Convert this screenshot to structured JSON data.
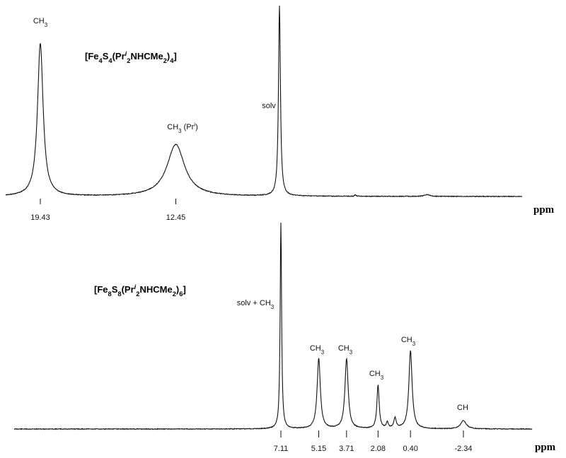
{
  "chart_data": [
    {
      "type": "line",
      "title_parts": [
        {
          "t": "[Fe"
        },
        {
          "t": "4",
          "sub": true
        },
        {
          "t": "S"
        },
        {
          "t": "4",
          "sub": true
        },
        {
          "t": "(Pr"
        },
        {
          "t": "i",
          "sup": true,
          "italic": true
        },
        {
          "t": "2",
          "sub": true
        },
        {
          "t": "NHCMe"
        },
        {
          "t": "2",
          "sub": true
        },
        {
          "t": ")"
        },
        {
          "t": "4",
          "sub": true
        },
        {
          "t": "]"
        }
      ],
      "xlabel": "ppm",
      "x_tick_labels": [
        "19.43",
        "12.45"
      ],
      "x_tick_values": [
        19.43,
        12.45
      ],
      "peaks": [
        {
          "shift": 19.43,
          "height": 1.0,
          "width": 0.35,
          "label_parts": [
            {
              "t": "CH"
            },
            {
              "t": "3",
              "sub": true
            }
          ]
        },
        {
          "shift": 12.45,
          "height": 0.34,
          "width": 1.1,
          "label_parts": [
            {
              "t": "CH"
            },
            {
              "t": "3",
              "sub": true
            },
            {
              "t": " (Pr"
            },
            {
              "t": "i",
              "sup": true
            },
            {
              "t": ")"
            }
          ]
        },
        {
          "shift": 7.11,
          "height": 1.25,
          "width": 0.12,
          "label_parts": [
            {
              "t": "solv"
            }
          ]
        },
        {
          "shift": -0.5,
          "height": 0.012,
          "width": 0.3,
          "label_parts": []
        },
        {
          "shift": 3.2,
          "height": 0.01,
          "width": 0.1,
          "label_parts": []
        }
      ],
      "text_labels": [
        "CH3",
        "CH3 (Pri)",
        "solv"
      ]
    },
    {
      "type": "line",
      "title_parts": [
        {
          "t": "[Fe"
        },
        {
          "t": "8",
          "sub": true
        },
        {
          "t": "S"
        },
        {
          "t": "8",
          "sub": true
        },
        {
          "t": "(Pr"
        },
        {
          "t": "i",
          "sup": true,
          "italic": true
        },
        {
          "t": "2",
          "sub": true
        },
        {
          "t": "NHCMe"
        },
        {
          "t": "2",
          "sub": true
        },
        {
          "t": ")"
        },
        {
          "t": "6",
          "sub": true
        },
        {
          "t": "]"
        }
      ],
      "xlabel": "ppm",
      "x_tick_labels": [
        "7.11",
        "5.15",
        "3.71",
        "2.08",
        "0.40",
        "-2.34"
      ],
      "x_tick_values": [
        7.11,
        5.15,
        3.71,
        2.08,
        0.4,
        -2.34
      ],
      "peaks": [
        {
          "shift": 7.11,
          "height": 1.0,
          "width": 0.09,
          "label_parts": [
            {
              "t": "solv + CH"
            },
            {
              "t": "3",
              "sub": true
            }
          ]
        },
        {
          "shift": 5.15,
          "height": 0.34,
          "width": 0.2,
          "label_parts": [
            {
              "t": "CH"
            },
            {
              "t": "3",
              "sub": true
            }
          ]
        },
        {
          "shift": 3.71,
          "height": 0.34,
          "width": 0.2,
          "label_parts": [
            {
              "t": "CH"
            },
            {
              "t": "3",
              "sub": true
            }
          ]
        },
        {
          "shift": 2.08,
          "height": 0.21,
          "width": 0.14,
          "label_parts": [
            {
              "t": "CH"
            },
            {
              "t": "3",
              "sub": true
            }
          ]
        },
        {
          "shift": 0.4,
          "height": 0.38,
          "width": 0.2,
          "label_parts": [
            {
              "t": "CH"
            },
            {
              "t": "3",
              "sub": true
            }
          ]
        },
        {
          "shift": -2.34,
          "height": 0.04,
          "width": 0.35,
          "label_parts": [
            {
              "t": "CH"
            }
          ]
        },
        {
          "shift": 1.2,
          "height": 0.05,
          "width": 0.15,
          "label_parts": []
        },
        {
          "shift": 1.6,
          "height": 0.03,
          "width": 0.12,
          "label_parts": []
        }
      ],
      "text_labels": [
        "solv + CH3",
        "CH3",
        "CH3",
        "CH3",
        "CH3",
        "CH"
      ]
    }
  ]
}
